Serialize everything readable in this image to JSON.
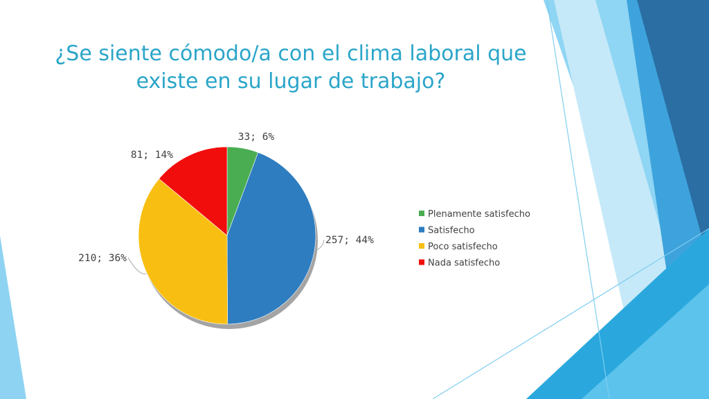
{
  "slide": {
    "title": "¿Se siente cómodo/a con el clima laboral que existe en su lugar de trabajo?"
  },
  "theme": {
    "title_color": "#2aa5c9",
    "deco_light": "#7fcdf0",
    "deco_mid": "#2e9fd8",
    "deco_dark": "#1f5f8f"
  },
  "chart_data": {
    "type": "pie",
    "title": "",
    "categories": [
      "Plenamente satisfecho",
      "Satisfecho",
      "Poco satisfecho",
      "Nada satisfecho"
    ],
    "values": [
      33,
      257,
      210,
      81
    ],
    "percentages": [
      6,
      44,
      36,
      14
    ],
    "labels": [
      "33; 6%",
      "257; 44%",
      "210; 36%",
      "81; 14%"
    ],
    "colors": [
      "#4aad52",
      "#2e7dc0",
      "#f8bf12",
      "#f20d0d"
    ],
    "start_angle": "12 o'clock",
    "direction": "clockwise",
    "legend_position": "right"
  }
}
